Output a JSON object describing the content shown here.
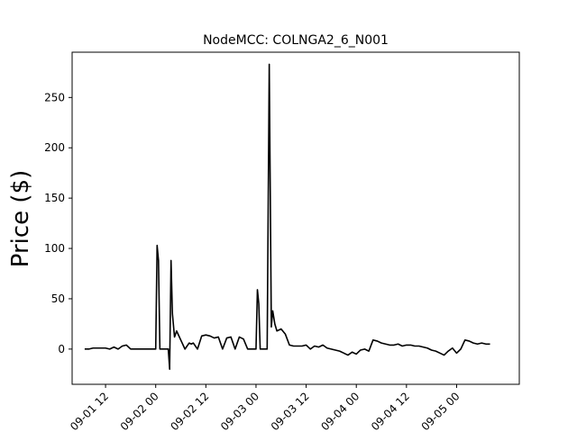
{
  "chart_data": {
    "type": "line",
    "title": "NodeMCC: COLNGA2_6_N001",
    "xlabel": "",
    "ylabel": "Price ($)",
    "ylim": [
      -35,
      295
    ],
    "x_ticks": [
      {
        "value": "2019-09-01 12:00",
        "label": "09-01 12"
      },
      {
        "value": "2019-09-02 00:00",
        "label": "09-02 00"
      },
      {
        "value": "2019-09-02 12:00",
        "label": "09-02 12"
      },
      {
        "value": "2019-09-03 00:00",
        "label": "09-03 00"
      },
      {
        "value": "2019-09-03 12:00",
        "label": "09-03 12"
      },
      {
        "value": "2019-09-04 00:00",
        "label": "09-04 00"
      },
      {
        "value": "2019-09-04 12:00",
        "label": "09-04 12"
      },
      {
        "value": "2019-09-05 00:00",
        "label": "09-05 00"
      }
    ],
    "y_ticks": [
      0,
      50,
      100,
      150,
      200,
      250
    ],
    "xlim": [
      "2019-09-01 04:00",
      "2019-09-05 15:00"
    ],
    "grid": false,
    "colors": {
      "line": "#000000"
    },
    "series": [
      {
        "color": "#000000",
        "x": [
          "2019-09-01 07:00",
          "2019-09-01 08:00",
          "2019-09-01 09:00",
          "2019-09-01 10:00",
          "2019-09-01 11:00",
          "2019-09-01 12:00",
          "2019-09-01 13:00",
          "2019-09-01 14:00",
          "2019-09-01 15:00",
          "2019-09-01 16:00",
          "2019-09-01 17:00",
          "2019-09-01 18:00",
          "2019-09-01 19:00",
          "2019-09-01 20:00",
          "2019-09-01 21:00",
          "2019-09-01 22:00",
          "2019-09-01 23:00",
          "2019-09-02 00:00",
          "2019-09-02 00:20",
          "2019-09-02 00:40",
          "2019-09-02 01:00",
          "2019-09-02 02:00",
          "2019-09-02 02:30",
          "2019-09-02 03:00",
          "2019-09-02 03:20",
          "2019-09-02 03:40",
          "2019-09-02 04:00",
          "2019-09-02 04:30",
          "2019-09-02 05:00",
          "2019-09-02 06:00",
          "2019-09-02 07:00",
          "2019-09-02 08:00",
          "2019-09-02 08:30",
          "2019-09-02 09:00",
          "2019-09-02 10:00",
          "2019-09-02 11:00",
          "2019-09-02 12:00",
          "2019-09-02 13:00",
          "2019-09-02 14:00",
          "2019-09-02 15:00",
          "2019-09-02 16:00",
          "2019-09-02 17:00",
          "2019-09-02 18:00",
          "2019-09-02 19:00",
          "2019-09-02 20:00",
          "2019-09-02 21:00",
          "2019-09-02 22:00",
          "2019-09-02 23:00",
          "2019-09-03 00:00",
          "2019-09-03 00:20",
          "2019-09-03 00:40",
          "2019-09-03 01:00",
          "2019-09-03 02:00",
          "2019-09-03 02:40",
          "2019-09-03 03:10",
          "2019-09-03 03:40",
          "2019-09-03 04:00",
          "2019-09-03 04:30",
          "2019-09-03 05:00",
          "2019-09-03 06:00",
          "2019-09-03 07:00",
          "2019-09-03 08:00",
          "2019-09-03 09:00",
          "2019-09-03 10:00",
          "2019-09-03 11:00",
          "2019-09-03 12:00",
          "2019-09-03 13:00",
          "2019-09-03 14:00",
          "2019-09-03 15:00",
          "2019-09-03 16:00",
          "2019-09-03 17:00",
          "2019-09-03 18:00",
          "2019-09-03 19:00",
          "2019-09-03 20:00",
          "2019-09-03 21:00",
          "2019-09-03 22:00",
          "2019-09-03 23:00",
          "2019-09-04 00:00",
          "2019-09-04 01:00",
          "2019-09-04 02:00",
          "2019-09-04 03:00",
          "2019-09-04 04:00",
          "2019-09-04 05:00",
          "2019-09-04 06:00",
          "2019-09-04 07:00",
          "2019-09-04 08:00",
          "2019-09-04 09:00",
          "2019-09-04 10:00",
          "2019-09-04 11:00",
          "2019-09-04 12:00",
          "2019-09-04 13:00",
          "2019-09-04 14:00",
          "2019-09-04 15:00",
          "2019-09-04 16:00",
          "2019-09-04 17:00",
          "2019-09-04 18:00",
          "2019-09-04 19:00",
          "2019-09-04 20:00",
          "2019-09-04 21:00",
          "2019-09-04 22:00",
          "2019-09-04 23:00",
          "2019-09-05 00:00",
          "2019-09-05 01:00",
          "2019-09-05 02:00",
          "2019-09-05 03:00",
          "2019-09-05 04:00",
          "2019-09-05 05:00",
          "2019-09-05 06:00",
          "2019-09-05 07:00",
          "2019-09-05 08:00"
        ],
        "y": [
          0,
          0,
          1,
          1,
          1,
          1,
          0,
          2,
          0,
          3,
          4,
          0,
          0,
          0,
          0,
          0,
          0,
          0,
          103,
          88,
          0,
          0,
          0,
          0,
          -20,
          88,
          35,
          12,
          18,
          9,
          0,
          6,
          5,
          6,
          0,
          13,
          14,
          13,
          11,
          12,
          0,
          11,
          12,
          0,
          12,
          10,
          0,
          0,
          0,
          59,
          45,
          0,
          0,
          0,
          283,
          22,
          38,
          25,
          18,
          20,
          15,
          4,
          3,
          3,
          3,
          4,
          0,
          3,
          2,
          4,
          1,
          0,
          -1,
          -2,
          -4,
          -6,
          -3,
          -5,
          -1,
          0,
          -2,
          9,
          8,
          6,
          5,
          4,
          4,
          5,
          3,
          4,
          4,
          3,
          3,
          2,
          1,
          -1,
          -2,
          -4,
          -6,
          -2,
          1,
          -4,
          0,
          9,
          8,
          6,
          5,
          6,
          5,
          5
        ]
      }
    ]
  }
}
